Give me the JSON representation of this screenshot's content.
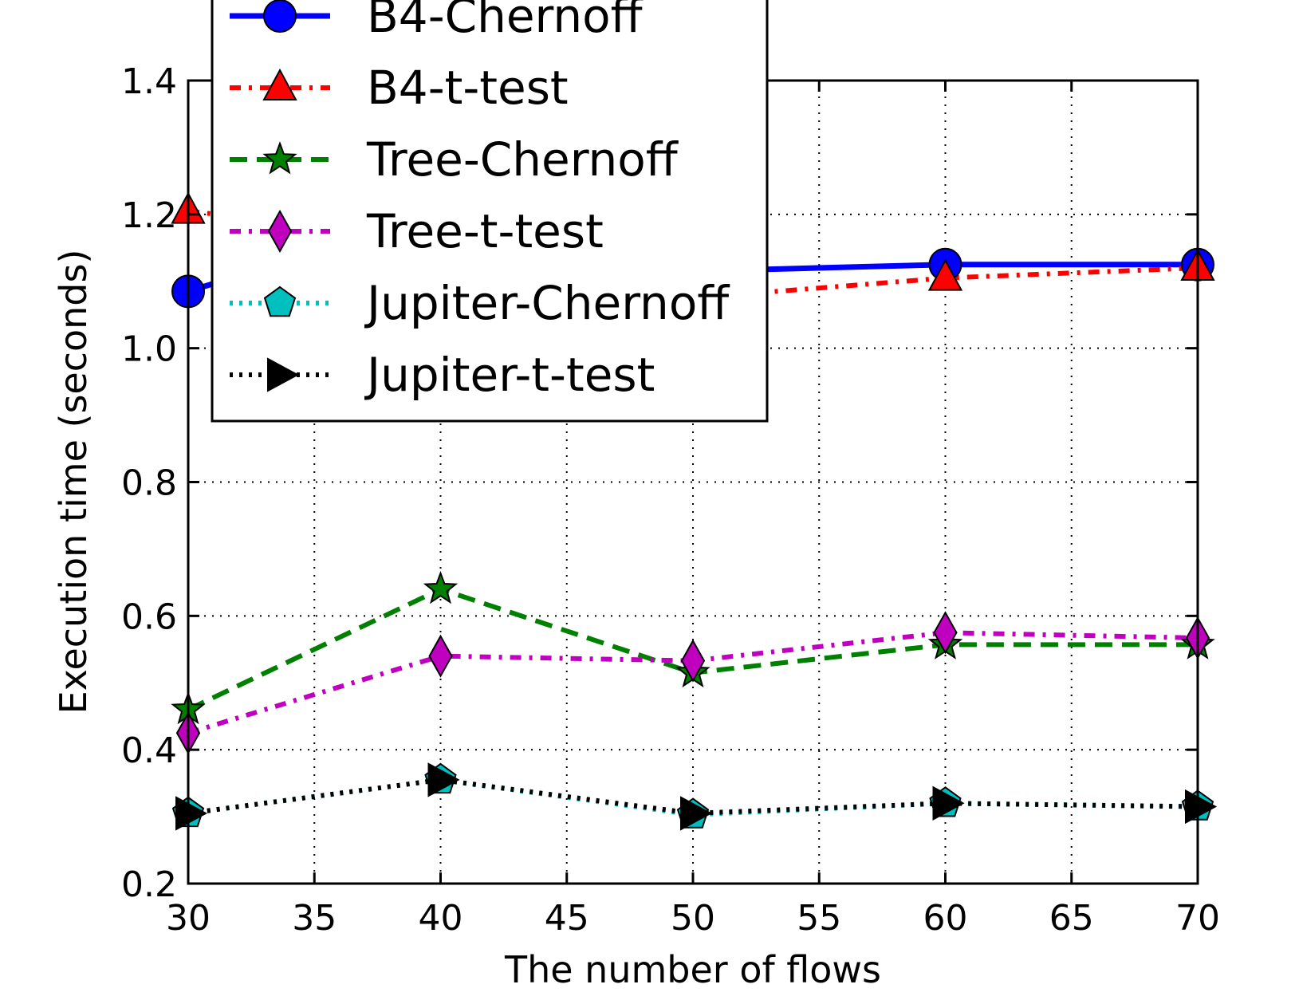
{
  "chart_data": {
    "type": "line",
    "title": "",
    "xlabel": "The number of flows",
    "ylabel": "Execution time (seconds)",
    "xlim": [
      30,
      70
    ],
    "ylim": [
      0.2,
      1.4
    ],
    "x_ticks": [
      "30",
      "35",
      "40",
      "45",
      "50",
      "55",
      "60",
      "65",
      "70"
    ],
    "y_ticks": [
      "0.2",
      "0.4",
      "0.6",
      "0.8",
      "1.0",
      "1.2",
      "1.4"
    ],
    "grid": true,
    "legend_position": "top-left",
    "x": [
      30,
      40,
      50,
      60,
      70
    ],
    "series": [
      {
        "name": "B4-Chernoff",
        "values": [
          1.085,
          1.2,
          1.115,
          1.125,
          1.125
        ],
        "color": "#0000ff",
        "marker": "circle",
        "line": "solid"
      },
      {
        "name": "B4-t-test",
        "values": [
          1.205,
          1.16,
          1.075,
          1.105,
          1.12
        ],
        "color": "#ff0000",
        "marker": "triangle-up",
        "line": "dashdot"
      },
      {
        "name": "Tree-Chernoff",
        "values": [
          0.46,
          0.64,
          0.515,
          0.557,
          0.557
        ],
        "color": "#008000",
        "marker": "star",
        "line": "dashed"
      },
      {
        "name": "Tree-t-test",
        "values": [
          0.425,
          0.54,
          0.533,
          0.575,
          0.567
        ],
        "color": "#bf00bf",
        "marker": "diamond",
        "line": "dashdot"
      },
      {
        "name": "Jupiter-Chernoff",
        "values": [
          0.305,
          0.355,
          0.303,
          0.32,
          0.315
        ],
        "color": "#00bfbf",
        "marker": "pentagon",
        "line": "dotted"
      },
      {
        "name": "Jupiter-t-test",
        "values": [
          0.305,
          0.355,
          0.305,
          0.32,
          0.315
        ],
        "color": "#000000",
        "marker": "triangle-right",
        "line": "dotted"
      }
    ]
  }
}
